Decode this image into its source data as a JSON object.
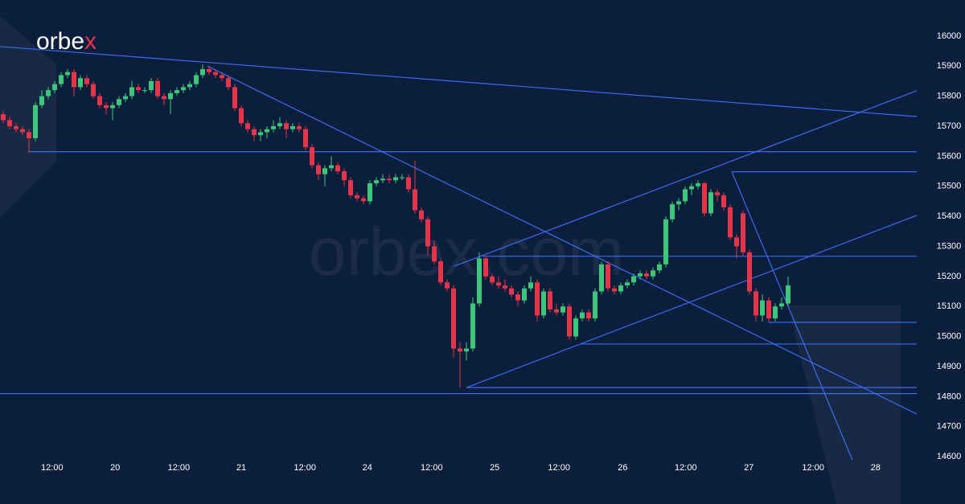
{
  "chart_data": {
    "type": "candlestick",
    "logo": {
      "text": "orbe",
      "accent": "x"
    },
    "watermark": "orbex.com",
    "colors": {
      "background": "#0b1e3b",
      "up": "#3cc87a",
      "down": "#e8334a",
      "line": "#3a6cf0",
      "text": "#ffffff",
      "accent": "#e8334a"
    },
    "xlim": [
      -0.5,
      142
    ],
    "ylim": [
      14520,
      16120
    ],
    "xticks": [
      {
        "value": 7.6,
        "label": "12:00"
      },
      {
        "value": 17.4,
        "label": "20"
      },
      {
        "value": 27.3,
        "label": "12:00"
      },
      {
        "value": 37,
        "label": "21"
      },
      {
        "value": 46.9,
        "label": "12:00"
      },
      {
        "value": 56.6,
        "label": "24"
      },
      {
        "value": 66.6,
        "label": "12:00"
      },
      {
        "value": 76.4,
        "label": "25"
      },
      {
        "value": 86.4,
        "label": "12:00"
      },
      {
        "value": 96.3,
        "label": "26"
      },
      {
        "value": 106.1,
        "label": "12:00"
      },
      {
        "value": 115.9,
        "label": "27"
      },
      {
        "value": 125.9,
        "label": "12:00"
      },
      {
        "value": 135.6,
        "label": "28"
      }
    ],
    "yticks": [
      14600,
      14700,
      14800,
      14900,
      15000,
      15100,
      15200,
      15300,
      15400,
      15500,
      15600,
      15700,
      15800,
      15900,
      16000
    ],
    "candles": [
      [
        15740,
        15750,
        15710,
        15720
      ],
      [
        15720,
        15730,
        15690,
        15700
      ],
      [
        15700,
        15710,
        15680,
        15690
      ],
      [
        15690,
        15700,
        15670,
        15680
      ],
      [
        15680,
        15690,
        15612,
        15660
      ],
      [
        15660,
        15780,
        15650,
        15770
      ],
      [
        15770,
        15820,
        15760,
        15800
      ],
      [
        15800,
        15830,
        15790,
        15820
      ],
      [
        15820,
        15850,
        15810,
        15840
      ],
      [
        15840,
        15880,
        15830,
        15870
      ],
      [
        15870,
        15890,
        15860,
        15880
      ],
      [
        15880,
        15890,
        15800,
        15830
      ],
      [
        15830,
        15870,
        15820,
        15860
      ],
      [
        15860,
        15870,
        15830,
        15840
      ],
      [
        15840,
        15850,
        15790,
        15800
      ],
      [
        15800,
        15810,
        15760,
        15770
      ],
      [
        15770,
        15780,
        15740,
        15760
      ],
      [
        15760,
        15780,
        15720,
        15770
      ],
      [
        15770,
        15800,
        15760,
        15790
      ],
      [
        15790,
        15810,
        15780,
        15800
      ],
      [
        15800,
        15850,
        15790,
        15830
      ],
      [
        15830,
        15840,
        15810,
        15820
      ],
      [
        15820,
        15830,
        15810,
        15820
      ],
      [
        15820,
        15860,
        15810,
        15850
      ],
      [
        15850,
        15860,
        15790,
        15800
      ],
      [
        15800,
        15810,
        15770,
        15790
      ],
      [
        15790,
        15820,
        15740,
        15810
      ],
      [
        15810,
        15830,
        15800,
        15820
      ],
      [
        15820,
        15840,
        15810,
        15830
      ],
      [
        15830,
        15850,
        15820,
        15840
      ],
      [
        15840,
        15880,
        15830,
        15870
      ],
      [
        15870,
        15905,
        15860,
        15890
      ],
      [
        15890,
        15900,
        15870,
        15880
      ],
      [
        15880,
        15890,
        15860,
        15870
      ],
      [
        15870,
        15880,
        15850,
        15860
      ],
      [
        15860,
        15870,
        15820,
        15830
      ],
      [
        15830,
        15840,
        15750,
        15760
      ],
      [
        15760,
        15770,
        15700,
        15710
      ],
      [
        15710,
        15720,
        15680,
        15690
      ],
      [
        15690,
        15700,
        15650,
        15670
      ],
      [
        15670,
        15690,
        15650,
        15680
      ],
      [
        15680,
        15700,
        15660,
        15690
      ],
      [
        15690,
        15720,
        15680,
        15700
      ],
      [
        15700,
        15730,
        15690,
        15710
      ],
      [
        15710,
        15720,
        15660,
        15690
      ],
      [
        15690,
        15710,
        15680,
        15700
      ],
      [
        15700,
        15710,
        15680,
        15690
      ],
      [
        15690,
        15700,
        15620,
        15630
      ],
      [
        15630,
        15640,
        15560,
        15570
      ],
      [
        15570,
        15580,
        15520,
        15540
      ],
      [
        15540,
        15570,
        15500,
        15560
      ],
      [
        15560,
        15600,
        15550,
        15570
      ],
      [
        15570,
        15580,
        15540,
        15550
      ],
      [
        15550,
        15560,
        15500,
        15520
      ],
      [
        15520,
        15530,
        15460,
        15470
      ],
      [
        15470,
        15480,
        15450,
        15460
      ],
      [
        15460,
        15470,
        15440,
        15450
      ],
      [
        15450,
        15520,
        15440,
        15510
      ],
      [
        15510,
        15530,
        15500,
        15520
      ],
      [
        15520,
        15540,
        15510,
        15525
      ],
      [
        15525,
        15540,
        15510,
        15520
      ],
      [
        15520,
        15540,
        15510,
        15530
      ],
      [
        15530,
        15540,
        15520,
        15530
      ],
      [
        15530,
        15540,
        15480,
        15490
      ],
      [
        15490,
        15585,
        15410,
        15420
      ],
      [
        15420,
        15430,
        15380,
        15390
      ],
      [
        15390,
        15400,
        15270,
        15300
      ],
      [
        15300,
        15320,
        15240,
        15250
      ],
      [
        15250,
        15260,
        15170,
        15180
      ],
      [
        15180,
        15190,
        15150,
        15160
      ],
      [
        15160,
        15170,
        14930,
        14960
      ],
      [
        14960,
        14980,
        14830,
        14950
      ],
      [
        14950,
        14980,
        14920,
        14960
      ],
      [
        14960,
        15130,
        14950,
        15110
      ],
      [
        15110,
        15280,
        15100,
        15260
      ],
      [
        15260,
        15270,
        15190,
        15200
      ],
      [
        15200,
        15210,
        15170,
        15180
      ],
      [
        15180,
        15200,
        15160,
        15170
      ],
      [
        15170,
        15190,
        15150,
        15160
      ],
      [
        15160,
        15170,
        15130,
        15140
      ],
      [
        15140,
        15150,
        15100,
        15120
      ],
      [
        15120,
        15170,
        15110,
        15160
      ],
      [
        15160,
        15200,
        15150,
        15180
      ],
      [
        15180,
        15190,
        15050,
        15070
      ],
      [
        15070,
        15160,
        15060,
        15150
      ],
      [
        15150,
        15160,
        15080,
        15090
      ],
      [
        15090,
        15110,
        15070,
        15080
      ],
      [
        15080,
        15110,
        15070,
        15100
      ],
      [
        15100,
        15110,
        14990,
        15000
      ],
      [
        15000,
        15070,
        14990,
        15060
      ],
      [
        15060,
        15090,
        15050,
        15080
      ],
      [
        15080,
        15090,
        15050,
        15060
      ],
      [
        15060,
        15160,
        15050,
        15150
      ],
      [
        15150,
        15250,
        15140,
        15240
      ],
      [
        15240,
        15250,
        15150,
        15160
      ],
      [
        15160,
        15170,
        15140,
        15150
      ],
      [
        15150,
        15180,
        15140,
        15170
      ],
      [
        15170,
        15190,
        15160,
        15180
      ],
      [
        15180,
        15210,
        15170,
        15200
      ],
      [
        15200,
        15220,
        15190,
        15210
      ],
      [
        15210,
        15220,
        15190,
        15200
      ],
      [
        15200,
        15230,
        15190,
        15220
      ],
      [
        15220,
        15250,
        15210,
        15240
      ],
      [
        15240,
        15400,
        15230,
        15390
      ],
      [
        15390,
        15450,
        15380,
        15440
      ],
      [
        15440,
        15460,
        15420,
        15450
      ],
      [
        15450,
        15500,
        15440,
        15490
      ],
      [
        15490,
        15510,
        15470,
        15500
      ],
      [
        15500,
        15520,
        15490,
        15510
      ],
      [
        15510,
        15515,
        15400,
        15410
      ],
      [
        15410,
        15490,
        15400,
        15480
      ],
      [
        15480,
        15490,
        15450,
        15470
      ],
      [
        15470,
        15480,
        15420,
        15430
      ],
      [
        15430,
        15440,
        15320,
        15330
      ],
      [
        15330,
        15340,
        15260,
        15300
      ],
      [
        15410,
        15420,
        15270,
        15280
      ],
      [
        15280,
        15290,
        15140,
        15150
      ],
      [
        15150,
        15160,
        15050,
        15070
      ],
      [
        15070,
        15140,
        15050,
        15120
      ],
      [
        15120,
        15130,
        15050,
        15060
      ],
      [
        15060,
        15110,
        15050,
        15100
      ],
      [
        15100,
        15130,
        15090,
        15110
      ],
      [
        15110,
        15200,
        15100,
        15170
      ]
    ],
    "trendlines": [
      {
        "x": [
          -0.5,
          142
        ],
        "y": [
          15965,
          15732
        ]
      },
      {
        "x": [
          3.9,
          142
        ],
        "y": [
          15615,
          15615
        ]
      },
      {
        "x": [
          -0.5,
          142
        ],
        "y": [
          14810,
          14810
        ]
      },
      {
        "x": [
          31.75,
          142
        ],
        "y": [
          15900,
          14742
        ]
      },
      {
        "x": [
          70.1,
          142
        ],
        "y": [
          15234,
          15818
        ]
      },
      {
        "x": [
          72,
          142
        ],
        "y": [
          14830,
          15403
        ]
      },
      {
        "x": [
          74.5,
          142
        ],
        "y": [
          15267,
          15267
        ]
      },
      {
        "x": [
          72,
          142
        ],
        "y": [
          14830,
          14830
        ]
      },
      {
        "x": [
          89.75,
          142
        ],
        "y": [
          14975,
          14975
        ]
      },
      {
        "x": [
          118.9,
          142
        ],
        "y": [
          15047,
          15047
        ]
      },
      {
        "x": [
          113.25,
          142
        ],
        "y": [
          15548,
          15548
        ]
      },
      {
        "x": [
          113.25,
          132
        ],
        "y": [
          15548,
          14589
        ]
      }
    ]
  }
}
